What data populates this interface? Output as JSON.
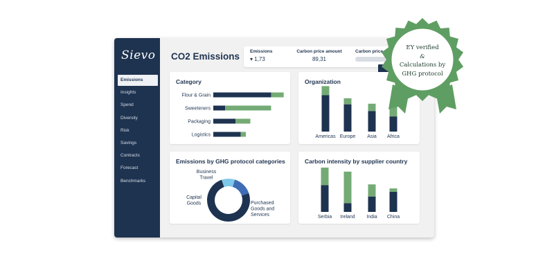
{
  "app": {
    "logo": "Sievo",
    "page_title": "CO2 Emissions",
    "nav": [
      "Emissions",
      "Insights",
      "Spend",
      "Diversity",
      "Risk",
      "Savings",
      "Contracts",
      "Forecast",
      "Benchmarks"
    ],
    "active_nav": "Emissions"
  },
  "kpis": {
    "emissions_label": "Emissions",
    "emissions_value": "▾ 1,73",
    "carbon_price_label": "Carbon price amount",
    "carbon_price_value": "89,31",
    "carbon_price_slider_label": "Carbon price"
  },
  "colors": {
    "navy": "#1e3350",
    "green": "#74ab75",
    "light_blue": "#7ec8ea",
    "mid_blue": "#3f6db5",
    "badge_green": "#5f9e63"
  },
  "badge": {
    "line1": "EY verified",
    "line2": "&",
    "line3": "Calculations by",
    "line4": "GHG protocol"
  },
  "cards": {
    "category": {
      "title": "Category",
      "chart_data": {
        "type": "bar",
        "orientation": "horizontal",
        "stacked": true,
        "categories": [
          "Flour & Grain",
          "Sweeteners",
          "Packaging",
          "Logistics"
        ],
        "series": [
          {
            "values": [
              78,
              16,
              30,
              37
            ]
          },
          {
            "values": [
              17,
              62,
              20,
              7
            ]
          }
        ],
        "xlim": [
          0,
          100
        ]
      }
    },
    "organization": {
      "title": "Organization",
      "chart_data": {
        "type": "bar",
        "stacked": true,
        "categories": [
          "Americas",
          "Europe",
          "Asia",
          "Africa"
        ],
        "series": [
          {
            "values": [
              60,
              45,
              34,
              25
            ]
          },
          {
            "values": [
              15,
              10,
              12,
              20
            ]
          }
        ],
        "ylim": [
          0,
          80
        ]
      }
    },
    "ghg": {
      "title": "Emissions by GHG protocol categories",
      "chart_data": {
        "type": "pie",
        "donut": true,
        "categories": [
          "Business Travel",
          "Capital Goods",
          "Purchased Goods and Services"
        ],
        "values": [
          10,
          15,
          75
        ],
        "labels": [
          [
            "Business",
            "Travel"
          ],
          [
            "Capital",
            "Goods"
          ],
          [
            "Purchased",
            "Goods and",
            "Services"
          ]
        ]
      }
    },
    "intensity": {
      "title": "Carbon intensity by supplier country",
      "chart_data": {
        "type": "bar",
        "stacked": true,
        "categories": [
          "Serbia",
          "Ireland",
          "India",
          "China"
        ],
        "series": [
          {
            "values": [
              40,
              13,
              23,
              30
            ]
          },
          {
            "values": [
              26,
              47,
              18,
              5
            ]
          }
        ],
        "ylim": [
          0,
          65
        ]
      }
    }
  }
}
